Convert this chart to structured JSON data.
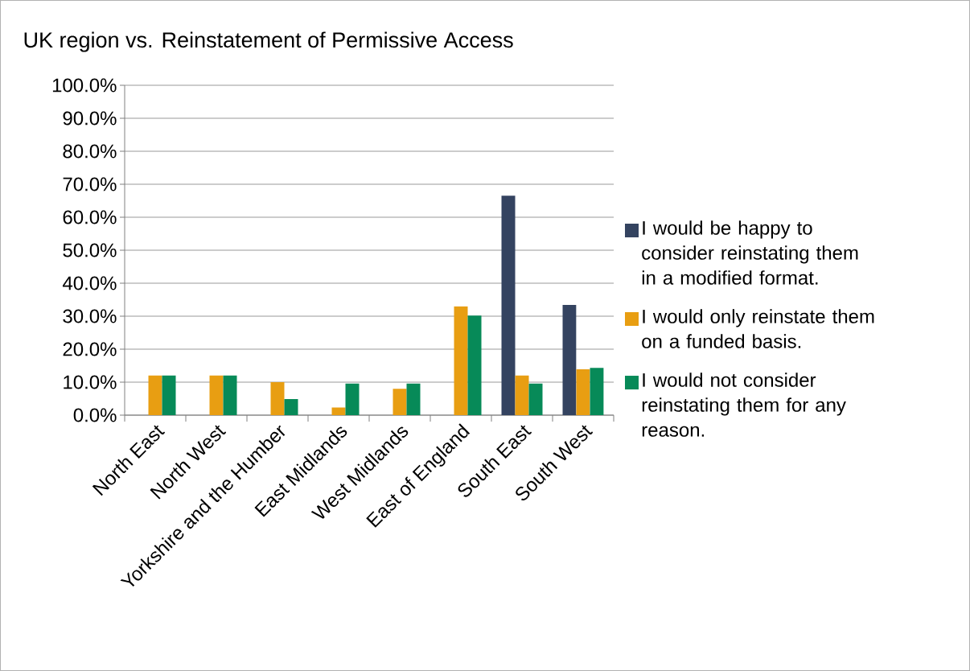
{
  "chart_data": {
    "type": "bar",
    "title": "UK region vs. Reinstatement of Permissive Access",
    "categories": [
      "North East",
      "North West",
      "Yorkshire and the Humber",
      "East Midlands",
      "West Midlands",
      "East of England",
      "South East",
      "South West"
    ],
    "series": [
      {
        "name": "I would be happy to consider reinstating them in a modified format.",
        "color": "#344360",
        "values": [
          0,
          0,
          0,
          0,
          0,
          0,
          66.5,
          33.4
        ]
      },
      {
        "name": "I would only reinstate them on a funded basis.",
        "color": "#e89e12",
        "values": [
          12.0,
          12.0,
          10.0,
          2.3,
          8.0,
          33.0,
          12.0,
          13.9
        ]
      },
      {
        "name": "I would not consider reinstating them for any reason.",
        "color": "#078a58",
        "values": [
          12.0,
          12.0,
          4.9,
          9.6,
          9.6,
          30.2,
          9.6,
          14.3
        ]
      }
    ],
    "ylim": [
      0,
      100
    ],
    "yticks": [
      {
        "value": 0,
        "label": "0.0%"
      },
      {
        "value": 10,
        "label": "10.0%"
      },
      {
        "value": 20,
        "label": "20.0%"
      },
      {
        "value": 30,
        "label": "30.0%"
      },
      {
        "value": 40,
        "label": "40.0%"
      },
      {
        "value": 50,
        "label": "50.0%"
      },
      {
        "value": 60,
        "label": "60.0%"
      },
      {
        "value": 70,
        "label": "70.0%"
      },
      {
        "value": 80,
        "label": "80.0%"
      },
      {
        "value": 90,
        "label": "90.0%"
      },
      {
        "value": 100,
        "label": "100.0%"
      }
    ],
    "grid": "y",
    "legend": "right"
  }
}
